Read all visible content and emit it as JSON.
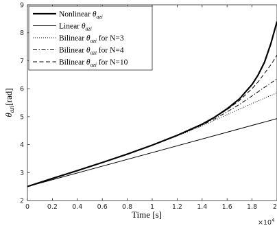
{
  "chart_data": {
    "type": "line",
    "xlabel": "Time [s]",
    "ylabel_main": "θ",
    "ylabel_sub": "azi",
    "ylabel_unit": "[rad]",
    "x_exponent_text": "×10",
    "x_exponent_power": "4",
    "xlim": [
      0,
      2
    ],
    "ylim": [
      2,
      9
    ],
    "x_scale": 10000,
    "x_ticks": [
      "0",
      "0.2",
      "0.4",
      "0.6",
      "0.8",
      "1",
      "1.2",
      "1.4",
      "1.6",
      "1.8",
      "2"
    ],
    "y_ticks": [
      "2",
      "3",
      "4",
      "5",
      "6",
      "7",
      "8",
      "9"
    ],
    "grid": false,
    "legend_position": "top-left",
    "series": [
      {
        "name_prefix": "Nonlinear ",
        "name_suffix": "",
        "style": "solid-thick",
        "x": [
          0,
          0.2,
          0.4,
          0.6,
          0.8,
          1.0,
          1.2,
          1.4,
          1.5,
          1.6,
          1.7,
          1.8,
          1.85,
          1.9,
          1.95,
          2.0
        ],
        "y": [
          2.5,
          2.79,
          3.07,
          3.36,
          3.66,
          3.98,
          4.33,
          4.73,
          4.98,
          5.28,
          5.64,
          6.15,
          6.5,
          6.95,
          7.6,
          8.4
        ]
      },
      {
        "name_prefix": "Linear ",
        "name_suffix": "",
        "style": "solid-thin",
        "x": [
          0,
          2.0
        ],
        "y": [
          2.5,
          4.93
        ]
      },
      {
        "name_prefix": "Bilinear ",
        "name_suffix": " for N=3",
        "style": "dotted",
        "x": [
          0,
          0.2,
          0.4,
          0.6,
          0.8,
          1.0,
          1.2,
          1.4,
          1.5,
          1.6,
          1.7,
          1.8,
          1.9,
          2.0
        ],
        "y": [
          2.5,
          2.79,
          3.07,
          3.36,
          3.66,
          3.97,
          4.31,
          4.67,
          4.87,
          5.07,
          5.27,
          5.47,
          5.66,
          5.85
        ]
      },
      {
        "name_prefix": "Bilinear ",
        "name_suffix": " for N=4",
        "style": "dashdot",
        "x": [
          0,
          0.2,
          0.4,
          0.6,
          0.8,
          1.0,
          1.2,
          1.4,
          1.5,
          1.6,
          1.7,
          1.8,
          1.9,
          2.0
        ],
        "y": [
          2.5,
          2.79,
          3.07,
          3.36,
          3.66,
          3.98,
          4.32,
          4.7,
          4.92,
          5.17,
          5.44,
          5.74,
          6.05,
          6.35
        ]
      },
      {
        "name_prefix": "Bilinear ",
        "name_suffix": " for N=10",
        "style": "dashed",
        "x": [
          0,
          0.2,
          0.4,
          0.6,
          0.8,
          1.0,
          1.2,
          1.4,
          1.5,
          1.6,
          1.7,
          1.8,
          1.85,
          1.9,
          1.95,
          2.0
        ],
        "y": [
          2.5,
          2.79,
          3.07,
          3.36,
          3.66,
          3.98,
          4.33,
          4.72,
          4.97,
          5.25,
          5.58,
          6.0,
          6.25,
          6.55,
          6.85,
          7.2
        ]
      }
    ]
  }
}
